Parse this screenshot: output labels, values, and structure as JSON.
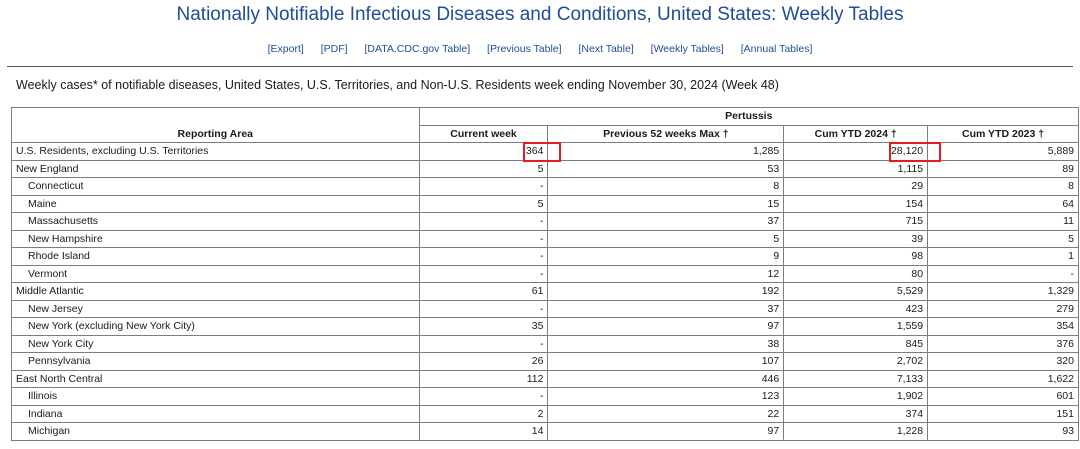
{
  "title": "Nationally Notifiable Infectious Diseases and Conditions, United States: Weekly Tables",
  "nav": [
    "[Export]",
    "[PDF]",
    "[DATA.CDC.gov Table]",
    "[Previous Table]",
    "[Next Table]",
    "[Weekly Tables]",
    "[Annual Tables]"
  ],
  "caption": "Weekly cases* of notifiable diseases, United States, U.S. Territories, and Non-U.S. Residents week ending November 30, 2024 (Week 48)",
  "table": {
    "group_header": "Pertussis",
    "area_header": "Reporting Area",
    "columns": [
      "Current week",
      "Previous 52 weeks Max †",
      "Cum YTD 2024 †",
      "Cum YTD 2023 †"
    ],
    "rows": [
      {
        "area": "U.S. Residents, excluding U.S. Territories",
        "current": "364",
        "prev_max": "1,285",
        "ytd_2024": "28,120",
        "ytd_2023": "5,889"
      },
      {
        "area": "New England",
        "current": "5",
        "prev_max": "53",
        "ytd_2024": "1,115",
        "ytd_2023": "89"
      },
      {
        "area": "Connecticut",
        "current": "-",
        "prev_max": "8",
        "ytd_2024": "29",
        "ytd_2023": "8"
      },
      {
        "area": "Maine",
        "current": "5",
        "prev_max": "15",
        "ytd_2024": "154",
        "ytd_2023": "64"
      },
      {
        "area": "Massachusetts",
        "current": "-",
        "prev_max": "37",
        "ytd_2024": "715",
        "ytd_2023": "11"
      },
      {
        "area": "New Hampshire",
        "current": "-",
        "prev_max": "5",
        "ytd_2024": "39",
        "ytd_2023": "5"
      },
      {
        "area": "Rhode Island",
        "current": "-",
        "prev_max": "9",
        "ytd_2024": "98",
        "ytd_2023": "1"
      },
      {
        "area": "Vermont",
        "current": "-",
        "prev_max": "12",
        "ytd_2024": "80",
        "ytd_2023": "-"
      },
      {
        "area": "Middle Atlantic",
        "current": "61",
        "prev_max": "192",
        "ytd_2024": "5,529",
        "ytd_2023": "1,329"
      },
      {
        "area": "New Jersey",
        "current": "-",
        "prev_max": "37",
        "ytd_2024": "423",
        "ytd_2023": "279"
      },
      {
        "area": "New York (excluding New York City)",
        "current": "35",
        "prev_max": "97",
        "ytd_2024": "1,559",
        "ytd_2023": "354"
      },
      {
        "area": "New York City",
        "current": "-",
        "prev_max": "38",
        "ytd_2024": "845",
        "ytd_2023": "376"
      },
      {
        "area": "Pennsylvania",
        "current": "26",
        "prev_max": "107",
        "ytd_2024": "2,702",
        "ytd_2023": "320"
      },
      {
        "area": "East North Central",
        "current": "112",
        "prev_max": "446",
        "ytd_2024": "7,133",
        "ytd_2023": "1,622"
      },
      {
        "area": "Illinois",
        "current": "-",
        "prev_max": "123",
        "ytd_2024": "1,902",
        "ytd_2023": "601"
      },
      {
        "area": "Indiana",
        "current": "2",
        "prev_max": "22",
        "ytd_2024": "374",
        "ytd_2023": "151"
      },
      {
        "area": "Michigan",
        "current": "14",
        "prev_max": "97",
        "ytd_2024": "1,228",
        "ytd_2023": "93"
      }
    ]
  },
  "indented_rows": [
    2,
    3,
    4,
    5,
    6,
    7,
    9,
    10,
    11,
    12,
    14,
    15,
    16
  ],
  "highlight_color": "#e31b23"
}
